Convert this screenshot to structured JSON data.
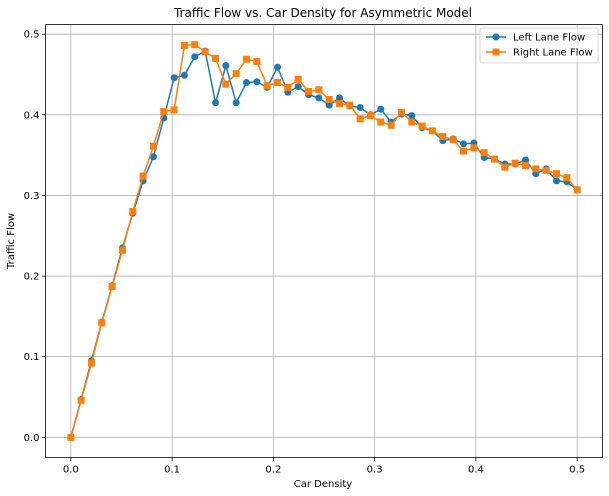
{
  "chart_data": {
    "type": "line",
    "title": "Traffic Flow vs. Car Density for Asymmetric Model",
    "xlabel": "Car Density",
    "ylabel": "Traffic Flow",
    "xlim": [
      -0.025,
      0.525
    ],
    "ylim": [
      -0.025,
      0.512
    ],
    "xticks": [
      0.0,
      0.1,
      0.2,
      0.3,
      0.4,
      0.5
    ],
    "xtick_labels": [
      "0.0",
      "0.1",
      "0.2",
      "0.3",
      "0.4",
      "0.5"
    ],
    "yticks": [
      0.0,
      0.1,
      0.2,
      0.3,
      0.4,
      0.5
    ],
    "ytick_labels": [
      "0.0",
      "0.1",
      "0.2",
      "0.3",
      "0.4",
      "0.5"
    ],
    "grid": true,
    "legend_position": "top-right",
    "x": [
      0.0,
      0.0102,
      0.0204,
      0.0306,
      0.0408,
      0.051,
      0.0612,
      0.0714,
      0.0816,
      0.0918,
      0.102,
      0.1122,
      0.1224,
      0.1327,
      0.1429,
      0.1531,
      0.1633,
      0.1735,
      0.1837,
      0.1939,
      0.2041,
      0.2143,
      0.2245,
      0.2347,
      0.2449,
      0.2551,
      0.2653,
      0.2755,
      0.2857,
      0.2959,
      0.3061,
      0.3163,
      0.3265,
      0.3367,
      0.3469,
      0.3571,
      0.3673,
      0.3776,
      0.3878,
      0.398,
      0.4082,
      0.4184,
      0.4286,
      0.4388,
      0.449,
      0.4592,
      0.4694,
      0.4796,
      0.4898,
      0.5
    ],
    "series": [
      {
        "name": "Left Lane Flow",
        "color": "#1f77b4",
        "marker": "circle",
        "values": [
          0.0,
          0.047,
          0.095,
          0.143,
          0.188,
          0.235,
          0.278,
          0.318,
          0.348,
          0.396,
          0.446,
          0.449,
          0.472,
          0.479,
          0.415,
          0.461,
          0.415,
          0.44,
          0.441,
          0.434,
          0.459,
          0.428,
          0.435,
          0.425,
          0.421,
          0.412,
          0.421,
          0.411,
          0.409,
          0.4,
          0.407,
          0.391,
          0.401,
          0.399,
          0.384,
          0.38,
          0.368,
          0.37,
          0.364,
          0.365,
          0.347,
          0.345,
          0.339,
          0.339,
          0.344,
          0.327,
          0.333,
          0.318,
          0.317,
          0.307
        ]
      },
      {
        "name": "Right Lane Flow",
        "color": "#ff7f0e",
        "marker": "square",
        "values": [
          0.0,
          0.046,
          0.092,
          0.142,
          0.187,
          0.232,
          0.28,
          0.324,
          0.361,
          0.404,
          0.406,
          0.486,
          0.487,
          0.478,
          0.47,
          0.438,
          0.451,
          0.469,
          0.466,
          0.436,
          0.44,
          0.434,
          0.444,
          0.429,
          0.431,
          0.419,
          0.414,
          0.412,
          0.395,
          0.399,
          0.391,
          0.387,
          0.403,
          0.391,
          0.386,
          0.38,
          0.373,
          0.369,
          0.355,
          0.359,
          0.353,
          0.345,
          0.335,
          0.34,
          0.337,
          0.333,
          0.331,
          0.327,
          0.322,
          0.307
        ]
      }
    ]
  }
}
